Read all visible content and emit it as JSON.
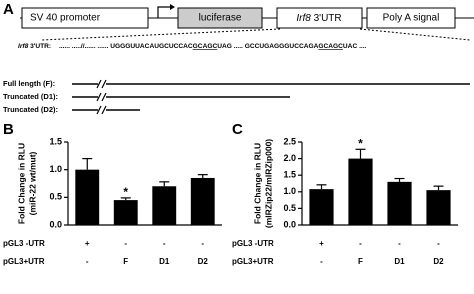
{
  "diagram": {
    "panel": "A",
    "promoter": "SV 40 promoter",
    "reporter": "luciferase",
    "utr": {
      "gene": "Irf8",
      "text": "3'UTR"
    },
    "polya": "Poly A signal",
    "sequence": {
      "gene": "Irf8",
      "label": "3'UTR:",
      "lead": "...... .....//...... ......",
      "site1": [
        "UGGGUUACAUGCUCCAC",
        "GCAGC",
        "UAG"
      ],
      "gap": ".....",
      "site2": [
        "GCCUGAGGGUCCAGA",
        "GCAGC",
        "UAC"
      ],
      "tail": "...."
    },
    "constructs": [
      "Full length (F):",
      "Truncated (D1):",
      "Truncated (D2):"
    ]
  },
  "chart_data": [
    {
      "type": "bar",
      "panel": "B",
      "ylabel": [
        "Fold Change in RLU",
        "(miR-22 wt/mut)"
      ],
      "values": [
        1.0,
        0.45,
        0.7,
        0.85
      ],
      "errors": [
        0.2,
        0.04,
        0.08,
        0.06
      ],
      "annotations": [
        null,
        "*",
        null,
        null
      ],
      "color": "#000000",
      "ylim": [
        0,
        1.5
      ],
      "yticks": [
        {
          "value": 0,
          "label": "0.0"
        },
        0.5,
        {
          "value": 1,
          "label": "1.0"
        },
        1.5
      ],
      "rows": [
        {
          "label": "pGL3 -UTR",
          "cells": [
            "+",
            "-",
            "-",
            "-"
          ]
        },
        {
          "label": "pGL3+UTR",
          "cells": [
            "-",
            "F",
            "D1",
            "D2"
          ]
        }
      ]
    },
    {
      "type": "bar",
      "panel": "C",
      "ylabel": [
        "Fold Change in RLU",
        "(mIRZip22/mIRZip000)"
      ],
      "values": [
        1.08,
        2.0,
        1.3,
        1.05
      ],
      "errors": [
        0.13,
        0.28,
        0.1,
        0.12
      ],
      "annotations": [
        null,
        "*",
        null,
        null
      ],
      "color": "#000000",
      "ylim": [
        0,
        2.5
      ],
      "yticks": [
        {
          "value": 0,
          "label": "0.0"
        },
        0.5,
        {
          "value": 1,
          "label": "1.0"
        },
        1.5,
        {
          "value": 2,
          "label": "2.0"
        },
        2.5
      ],
      "rows": [
        {
          "label": "pGL3 -UTR",
          "cells": [
            "+",
            "-",
            "-",
            "-"
          ]
        },
        {
          "label": "pGL3+UTR",
          "cells": [
            "-",
            "F",
            "D1",
            "D2"
          ]
        }
      ]
    }
  ]
}
